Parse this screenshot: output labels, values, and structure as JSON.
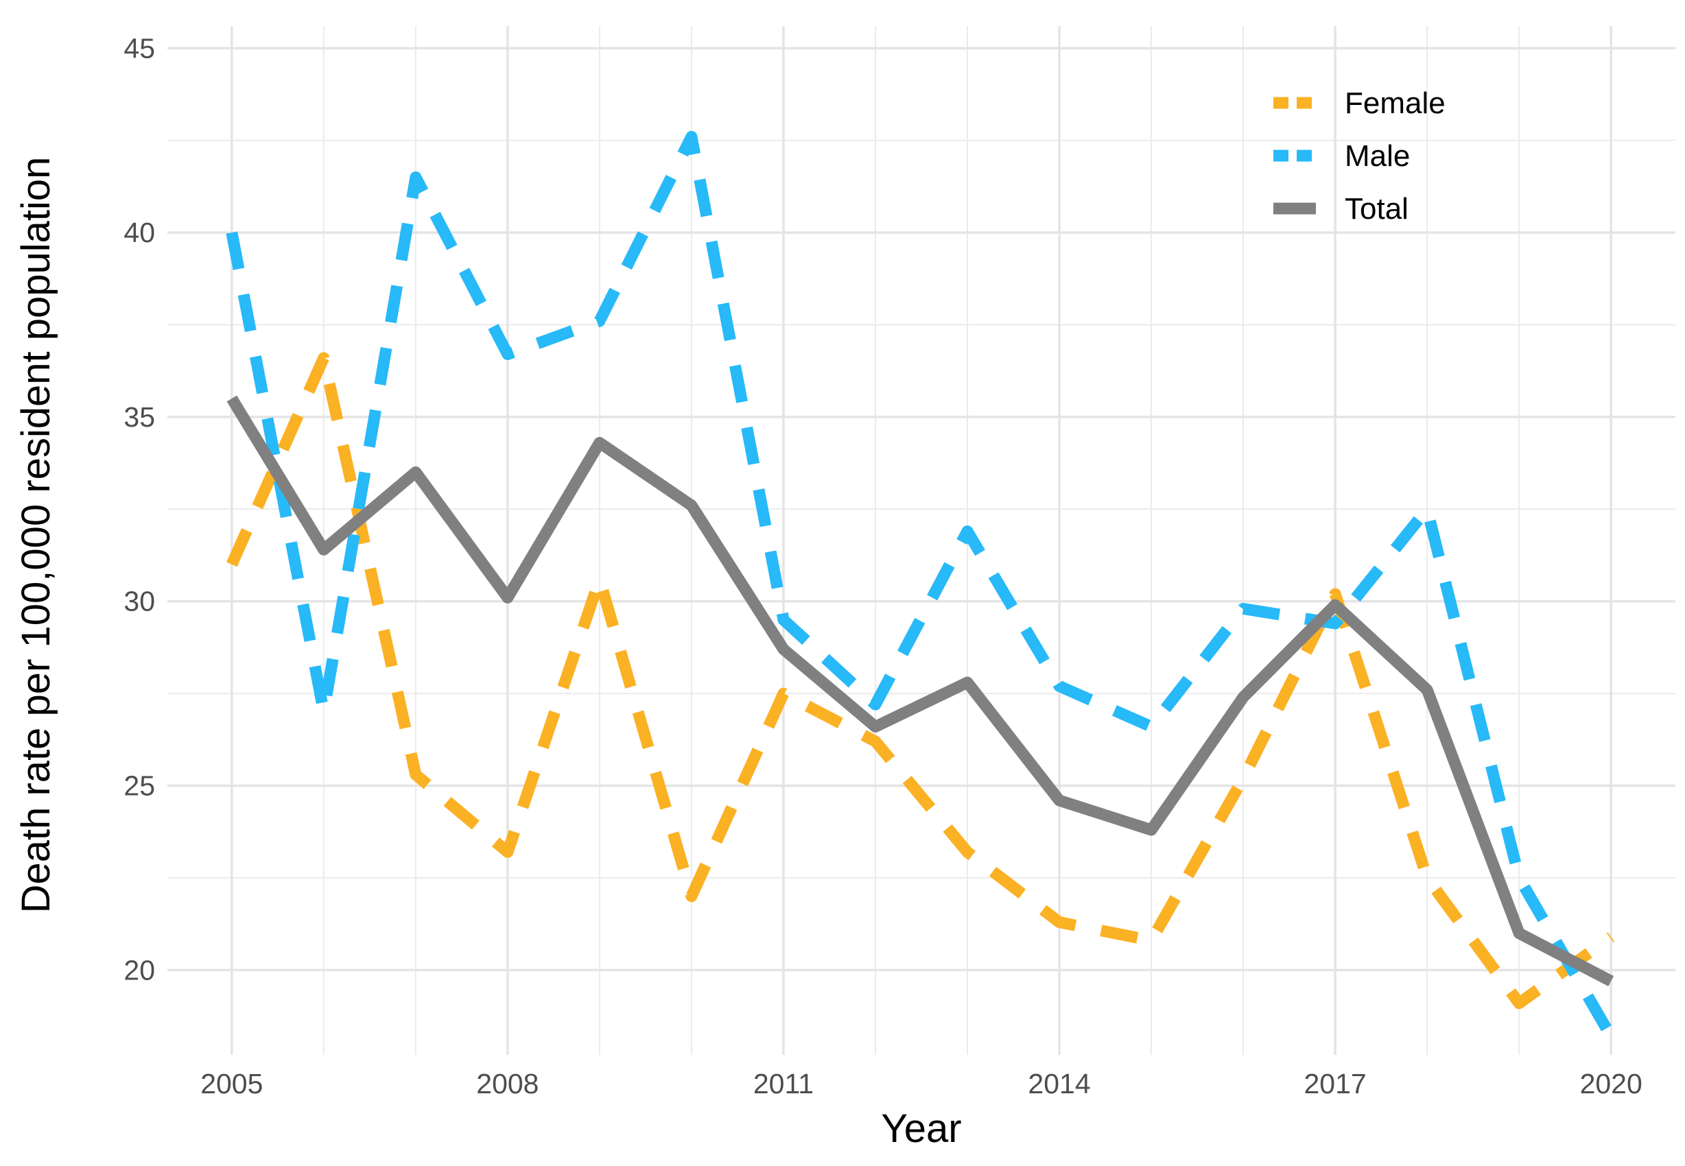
{
  "chart_data": {
    "type": "line",
    "title": "",
    "xlabel": "Year",
    "ylabel": "Death rate per 100,000 resident population",
    "x": [
      2005,
      2006,
      2007,
      2008,
      2009,
      2010,
      2011,
      2012,
      2013,
      2014,
      2015,
      2016,
      2017,
      2018,
      2019,
      2020
    ],
    "xlim": [
      2004.3,
      2020.7
    ],
    "ylim": [
      17.7,
      45.6
    ],
    "xticks": [
      "2005",
      "2008",
      "2011",
      "2014",
      "2017",
      "2020"
    ],
    "xtick_values": [
      2005,
      2008,
      2011,
      2014,
      2017,
      2020
    ],
    "yticks": [
      "20",
      "25",
      "30",
      "35",
      "40",
      "45"
    ],
    "ytick_values": [
      20,
      25,
      30,
      35,
      40,
      45
    ],
    "grid": true,
    "legend_position": "top-right",
    "series": [
      {
        "name": "Female",
        "color": "#FBB124",
        "line_style": "dashed",
        "values": [
          31.0,
          36.6,
          25.3,
          23.2,
          30.6,
          22.0,
          27.5,
          26.2,
          23.2,
          21.3,
          20.8,
          25.2,
          30.2,
          22.5,
          19.1,
          20.9
        ]
      },
      {
        "name": "Male",
        "color": "#27B9F8",
        "line_style": "dashed",
        "values": [
          40.0,
          27.0,
          41.5,
          36.7,
          37.6,
          42.6,
          29.5,
          27.2,
          31.9,
          27.7,
          26.6,
          29.8,
          29.4,
          32.5,
          22.5,
          18.2
        ]
      },
      {
        "name": "Total",
        "color": "#808080",
        "line_style": "solid",
        "values": [
          35.5,
          31.4,
          33.5,
          30.1,
          34.3,
          32.6,
          28.7,
          26.6,
          27.8,
          24.6,
          23.8,
          27.4,
          29.9,
          27.6,
          21.0,
          19.7
        ]
      }
    ]
  }
}
